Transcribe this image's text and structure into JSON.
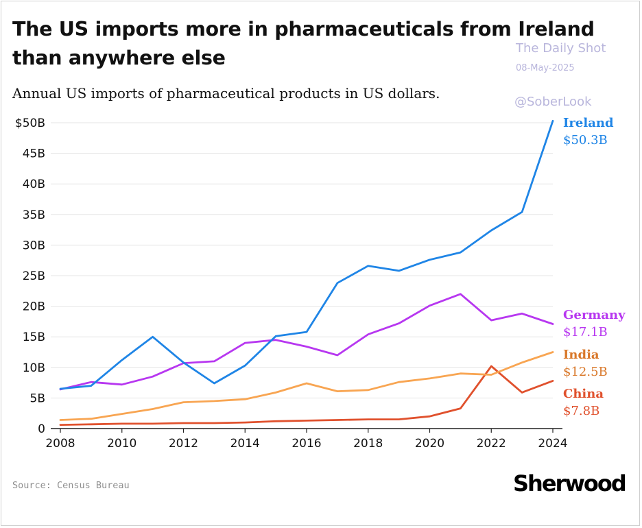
{
  "header": {
    "title": "The US imports more in pharmaceuticals from Ireland than anywhere else",
    "subtitle": "Annual US imports of pharmaceutical products in US dollars."
  },
  "watermark": {
    "name": "The Daily Shot",
    "date": "08-May-2025",
    "handle": "@SoberLook"
  },
  "footer": {
    "source": "Source: Census Bureau",
    "logo": "Sherwood"
  },
  "chart_data": {
    "type": "line",
    "title": "The US imports more in pharmaceuticals from Ireland than anywhere else",
    "subtitle": "Annual US imports of pharmaceutical products in US dollars.",
    "xlabel": "",
    "ylabel": "",
    "x": [
      2008,
      2009,
      2010,
      2011,
      2012,
      2013,
      2014,
      2015,
      2016,
      2017,
      2018,
      2019,
      2020,
      2021,
      2022,
      2023,
      2024
    ],
    "xlim": [
      2008,
      2024
    ],
    "ylim": [
      0,
      50
    ],
    "x_ticks": [
      "2008",
      "2010",
      "2012",
      "2014",
      "2016",
      "2018",
      "2020",
      "2022",
      "2024"
    ],
    "y_ticks": [
      0,
      5,
      10,
      15,
      20,
      25,
      30,
      35,
      40,
      45,
      50
    ],
    "y_tick_labels": [
      "0",
      "5B",
      "10B",
      "15B",
      "20B",
      "25B",
      "30B",
      "35B",
      "40B",
      "45B",
      "$50B"
    ],
    "grid": true,
    "series": [
      {
        "name": "Ireland",
        "label_value": "$50.3B",
        "color": "#1f85e6",
        "values": [
          6.5,
          7.0,
          11.2,
          15.0,
          10.8,
          7.4,
          10.3,
          15.1,
          15.8,
          23.8,
          26.6,
          25.8,
          27.6,
          28.8,
          32.4,
          35.4,
          50.3
        ]
      },
      {
        "name": "Germany",
        "label_value": "$17.1B",
        "color": "#b737f0",
        "values": [
          6.4,
          7.6,
          7.2,
          8.5,
          10.7,
          11.0,
          14.0,
          14.5,
          13.4,
          12.0,
          15.4,
          17.2,
          20.1,
          22.0,
          17.7,
          18.8,
          17.1
        ]
      },
      {
        "name": "India",
        "label_value": "$12.5B",
        "color": "#f8a552",
        "values": [
          1.4,
          1.6,
          2.4,
          3.2,
          4.3,
          4.5,
          4.8,
          5.9,
          7.4,
          6.1,
          6.3,
          7.6,
          8.2,
          9.0,
          8.8,
          10.8,
          12.5
        ]
      },
      {
        "name": "China",
        "label_value": "$7.8B",
        "color": "#e0512d",
        "values": [
          0.6,
          0.7,
          0.8,
          0.8,
          0.9,
          0.9,
          1.0,
          1.2,
          1.3,
          1.4,
          1.5,
          1.5,
          2.0,
          3.3,
          10.2,
          5.9,
          7.8
        ]
      }
    ],
    "label_colors": {
      "Ireland": "#1f85e6",
      "Germany": "#b737f0",
      "India": "#d9782a",
      "China": "#e0512d"
    }
  }
}
